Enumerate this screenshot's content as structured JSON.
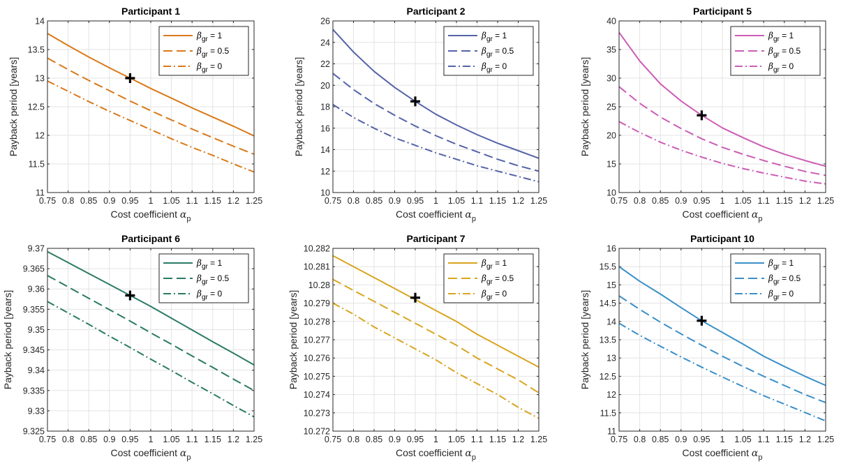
{
  "chart_data": [
    {
      "type": "line",
      "title": "Participant 1",
      "xlabel_text": "Cost coefficient",
      "xlabel_symbol": "α",
      "xlabel_sub": "p",
      "ylabel": "Payback period [years]",
      "xlim": [
        0.75,
        1.25
      ],
      "ylim": [
        11,
        14
      ],
      "xticks": [
        "0.75",
        "0.8",
        "0.85",
        "0.9",
        "0.95",
        "1",
        "1.05",
        "1.1",
        "1.15",
        "1.2",
        "1.25"
      ],
      "yticks": [
        "11",
        "11.5",
        "12",
        "12.5",
        "13",
        "13.5",
        "14"
      ],
      "grid": true,
      "legend_position": "top-right",
      "color": "#D9791A",
      "x": [
        0.75,
        0.8,
        0.85,
        0.9,
        0.95,
        1.0,
        1.05,
        1.1,
        1.15,
        1.2,
        1.25
      ],
      "series": [
        {
          "name_sym": "β",
          "name_sub": "gr",
          "name_rest": " = 1",
          "dash": "solid",
          "values": [
            13.78,
            13.57,
            13.37,
            13.18,
            13.0,
            12.82,
            12.65,
            12.48,
            12.32,
            12.16,
            11.99
          ]
        },
        {
          "name_sym": "β",
          "name_sub": "gr",
          "name_rest": " = 0.5",
          "dash": "dash",
          "values": [
            13.35,
            13.15,
            12.96,
            12.78,
            12.6,
            12.43,
            12.27,
            12.11,
            11.96,
            11.81,
            11.67
          ]
        },
        {
          "name_sym": "β",
          "name_sub": "gr",
          "name_rest": " = 0",
          "dash": "dashdot",
          "values": [
            12.95,
            12.77,
            12.59,
            12.42,
            12.26,
            12.1,
            11.94,
            11.79,
            11.65,
            11.5,
            11.36
          ]
        }
      ],
      "marker": {
        "x": 0.95,
        "y": 13.0,
        "symbol": "+"
      }
    },
    {
      "type": "line",
      "title": "Participant 2",
      "xlabel_text": "Cost coefficient",
      "xlabel_symbol": "α",
      "xlabel_sub": "p",
      "ylabel": "Payback period [years]",
      "xlim": [
        0.75,
        1.25
      ],
      "ylim": [
        10,
        26
      ],
      "xticks": [
        "0.75",
        "0.8",
        "0.85",
        "0.9",
        "0.95",
        "1",
        "1.05",
        "1.1",
        "1.15",
        "1.2",
        "1.25"
      ],
      "yticks": [
        "10",
        "12",
        "14",
        "16",
        "18",
        "20",
        "22",
        "24",
        "26"
      ],
      "grid": true,
      "legend_position": "top-right",
      "color": "#5563A8",
      "x": [
        0.75,
        0.8,
        0.85,
        0.9,
        0.95,
        1.0,
        1.05,
        1.1,
        1.15,
        1.2,
        1.25
      ],
      "series": [
        {
          "name_sym": "β",
          "name_sub": "gr",
          "name_rest": " = 1",
          "dash": "solid",
          "values": [
            25.2,
            23.1,
            21.3,
            19.8,
            18.5,
            17.3,
            16.3,
            15.4,
            14.6,
            13.9,
            13.2
          ]
        },
        {
          "name_sym": "β",
          "name_sub": "gr",
          "name_rest": " = 0.5",
          "dash": "dash",
          "values": [
            21.1,
            19.6,
            18.3,
            17.2,
            16.2,
            15.3,
            14.5,
            13.8,
            13.1,
            12.5,
            12.0
          ]
        },
        {
          "name_sym": "β",
          "name_sub": "gr",
          "name_rest": " = 0",
          "dash": "dashdot",
          "values": [
            18.2,
            17.0,
            16.0,
            15.1,
            14.4,
            13.7,
            13.1,
            12.5,
            12.0,
            11.5,
            11.0
          ]
        }
      ],
      "marker": {
        "x": 0.95,
        "y": 18.5,
        "symbol": "+"
      }
    },
    {
      "type": "line",
      "title": "Participant 5",
      "xlabel_text": "Cost coefficient",
      "xlabel_symbol": "α",
      "xlabel_sub": "p",
      "ylabel": "Payback period [years]",
      "xlim": [
        0.75,
        1.25
      ],
      "ylim": [
        10,
        40
      ],
      "xticks": [
        "0.75",
        "0.8",
        "0.85",
        "0.9",
        "0.95",
        "1",
        "1.05",
        "1.1",
        "1.15",
        "1.2",
        "1.25"
      ],
      "yticks": [
        "10",
        "15",
        "20",
        "25",
        "30",
        "35",
        "40"
      ],
      "grid": true,
      "legend_position": "top-right",
      "color": "#CC5DB5",
      "x": [
        0.75,
        0.8,
        0.85,
        0.9,
        0.95,
        1.0,
        1.05,
        1.1,
        1.15,
        1.2,
        1.25
      ],
      "series": [
        {
          "name_sym": "β",
          "name_sub": "gr",
          "name_rest": " = 1",
          "dash": "solid",
          "values": [
            38.0,
            33.0,
            29.0,
            26.0,
            23.5,
            21.3,
            19.6,
            18.0,
            16.7,
            15.6,
            14.6
          ]
        },
        {
          "name_sym": "β",
          "name_sub": "gr",
          "name_rest": " = 0.5",
          "dash": "dash",
          "values": [
            28.5,
            25.6,
            23.2,
            21.2,
            19.4,
            17.9,
            16.7,
            15.6,
            14.6,
            13.7,
            13.0
          ]
        },
        {
          "name_sym": "β",
          "name_sub": "gr",
          "name_rest": " = 0",
          "dash": "dashdot",
          "values": [
            22.4,
            20.5,
            18.8,
            17.4,
            16.2,
            15.1,
            14.2,
            13.4,
            12.7,
            12.0,
            11.5
          ]
        }
      ],
      "marker": {
        "x": 0.95,
        "y": 23.5,
        "symbol": "+"
      }
    },
    {
      "type": "line",
      "title": "Participant 6",
      "xlabel_text": "Cost coefficient",
      "xlabel_symbol": "α",
      "xlabel_sub": "p",
      "ylabel": "Payback period [years]",
      "xlim": [
        0.75,
        1.25
      ],
      "ylim": [
        9.325,
        9.37
      ],
      "xticks": [
        "0.75",
        "0.8",
        "0.85",
        "0.9",
        "0.95",
        "1",
        "1.05",
        "1.1",
        "1.15",
        "1.2",
        "1.25"
      ],
      "yticks": [
        "9.325",
        "9.33",
        "9.335",
        "9.34",
        "9.345",
        "9.35",
        "9.355",
        "9.36",
        "9.365",
        "9.37"
      ],
      "grid": true,
      "legend_position": "top-right",
      "color": "#2A7A65",
      "x": [
        0.75,
        0.8,
        0.85,
        0.9,
        0.95,
        1.0,
        1.05,
        1.1,
        1.15,
        1.2,
        1.25
      ],
      "series": [
        {
          "name_sym": "β",
          "name_sub": "gr",
          "name_rest": " = 1",
          "dash": "solid",
          "values": [
            9.3692,
            9.3665,
            9.3638,
            9.3611,
            9.3584,
            9.3557,
            9.3528,
            9.3499,
            9.347,
            9.3442,
            9.3413
          ]
        },
        {
          "name_sym": "β",
          "name_sub": "gr",
          "name_rest": " = 0.5",
          "dash": "dash",
          "values": [
            9.3633,
            9.3605,
            9.3577,
            9.3549,
            9.3521,
            9.3492,
            9.3464,
            9.3435,
            9.3407,
            9.3378,
            9.335
          ]
        },
        {
          "name_sym": "β",
          "name_sub": "gr",
          "name_rest": " = 0",
          "dash": "dashdot",
          "values": [
            9.3569,
            9.3541,
            9.3513,
            9.3484,
            9.3456,
            9.3427,
            9.3399,
            9.337,
            9.3342,
            9.3313,
            9.3285
          ]
        }
      ],
      "marker": {
        "x": 0.95,
        "y": 9.3584,
        "symbol": "+"
      }
    },
    {
      "type": "line",
      "title": "Participant 7",
      "xlabel_text": "Cost coefficient",
      "xlabel_symbol": "α",
      "xlabel_sub": "p",
      "ylabel": "Payback period [years]",
      "xlim": [
        0.75,
        1.25
      ],
      "ylim": [
        10.272,
        10.282
      ],
      "xticks": [
        "0.75",
        "0.8",
        "0.85",
        "0.9",
        "0.95",
        "1",
        "1.05",
        "1.1",
        "1.15",
        "1.2",
        "1.25"
      ],
      "yticks": [
        "10.272",
        "10.273",
        "10.274",
        "10.275",
        "10.276",
        "10.277",
        "10.278",
        "10.279",
        "10.28",
        "10.281",
        "10.282"
      ],
      "grid": true,
      "legend_position": "top-right",
      "color": "#D9A520",
      "x": [
        0.75,
        0.8,
        0.85,
        0.9,
        0.95,
        1.0,
        1.05,
        1.1,
        1.15,
        1.2,
        1.25
      ],
      "series": [
        {
          "name_sym": "β",
          "name_sub": "gr",
          "name_rest": " = 1",
          "dash": "solid",
          "values": [
            10.2816,
            10.281,
            10.2804,
            10.2798,
            10.2792,
            10.2786,
            10.278,
            10.2773,
            10.2767,
            10.2761,
            10.2755
          ]
        },
        {
          "name_sym": "β",
          "name_sub": "gr",
          "name_rest": " = 0.5",
          "dash": "dash",
          "values": [
            10.2803,
            10.2797,
            10.2791,
            10.2785,
            10.2779,
            10.2773,
            10.2767,
            10.276,
            10.2754,
            10.2748,
            10.2741
          ]
        },
        {
          "name_sym": "β",
          "name_sub": "gr",
          "name_rest": " = 0",
          "dash": "dashdot",
          "values": [
            10.279,
            10.2784,
            10.2777,
            10.2771,
            10.2765,
            10.2759,
            10.2752,
            10.2746,
            10.274,
            10.2733,
            10.2727
          ]
        }
      ],
      "marker": {
        "x": 0.95,
        "y": 10.2793,
        "symbol": "+"
      }
    },
    {
      "type": "line",
      "title": "Participant 10",
      "xlabel_text": "Cost coefficient",
      "xlabel_symbol": "α",
      "xlabel_sub": "p",
      "ylabel": "Payback period [years]",
      "xlim": [
        0.75,
        1.25
      ],
      "ylim": [
        11,
        16
      ],
      "xticks": [
        "0.75",
        "0.8",
        "0.85",
        "0.9",
        "0.95",
        "1",
        "1.05",
        "1.1",
        "1.15",
        "1.2",
        "1.25"
      ],
      "yticks": [
        "11",
        "11.5",
        "12",
        "12.5",
        "13",
        "13.5",
        "14",
        "14.5",
        "15",
        "15.5",
        "16"
      ],
      "grid": true,
      "legend_position": "top-right",
      "color": "#3A8FC8",
      "x": [
        0.75,
        0.8,
        0.85,
        0.9,
        0.95,
        1.0,
        1.05,
        1.1,
        1.15,
        1.2,
        1.25
      ],
      "series": [
        {
          "name_sym": "β",
          "name_sub": "gr",
          "name_rest": " = 1",
          "dash": "solid",
          "values": [
            15.5,
            15.1,
            14.75,
            14.38,
            14.02,
            13.7,
            13.38,
            13.05,
            12.77,
            12.5,
            12.25
          ]
        },
        {
          "name_sym": "β",
          "name_sub": "gr",
          "name_rest": " = 0.5",
          "dash": "dash",
          "values": [
            14.7,
            14.33,
            13.98,
            13.66,
            13.35,
            13.05,
            12.77,
            12.5,
            12.25,
            12.0,
            11.78
          ]
        },
        {
          "name_sym": "β",
          "name_sub": "gr",
          "name_rest": " = 0",
          "dash": "dashdot",
          "values": [
            13.95,
            13.62,
            13.32,
            13.03,
            12.75,
            12.48,
            12.22,
            11.97,
            11.74,
            11.51,
            11.28
          ]
        }
      ],
      "marker": {
        "x": 0.95,
        "y": 14.02,
        "symbol": "+"
      }
    }
  ]
}
